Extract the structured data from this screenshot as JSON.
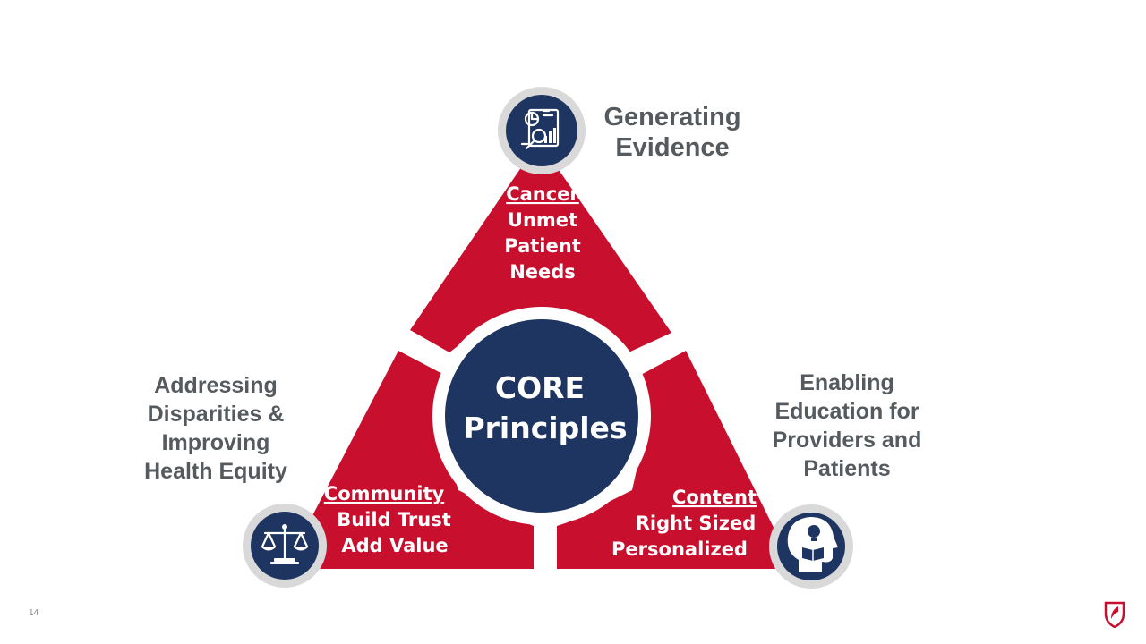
{
  "center": {
    "line1": "CORE",
    "line2": "Principles"
  },
  "segments": {
    "top": {
      "title": "Cancer",
      "lines": [
        "Unmet",
        "Patient",
        "Needs"
      ]
    },
    "left": {
      "title": "Community",
      "lines": [
        "Build Trust",
        "Add Value"
      ]
    },
    "right": {
      "title": "Content",
      "lines": [
        "Right Sized",
        "Personalized"
      ]
    }
  },
  "outer_labels": {
    "top": [
      "Generating",
      "Evidence"
    ],
    "left": [
      "Addressing",
      "Disparities &",
      "Improving",
      "Health Equity"
    ],
    "right": [
      "Enabling",
      "Education for",
      "Providers and",
      "Patients"
    ]
  },
  "icons": {
    "top": "data-report-magnifier-icon",
    "left": "scales-of-justice-icon",
    "right": "head-lightbulb-book-icon"
  },
  "colors": {
    "triangle": "#c8102e",
    "navy": "#1f3561",
    "ring": "#d9d9d9",
    "label_gray": "#555a5e"
  },
  "page_number": "14"
}
